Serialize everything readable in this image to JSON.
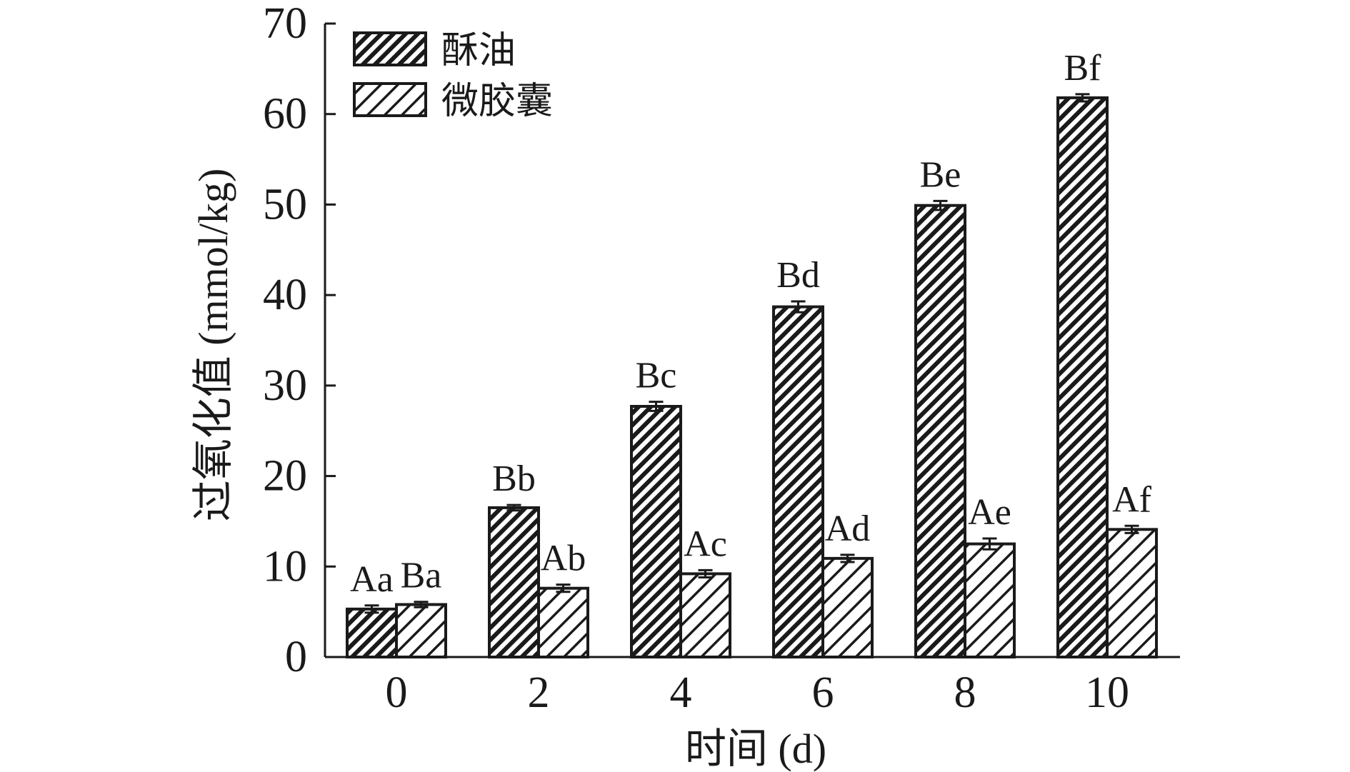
{
  "chart_data": {
    "type": "bar",
    "categories": [
      "0",
      "2",
      "4",
      "6",
      "8",
      "10"
    ],
    "series": [
      {
        "name": "酥油",
        "values": [
          5.3,
          16.5,
          27.7,
          38.7,
          49.9,
          61.8
        ],
        "errors": [
          0.4,
          0.3,
          0.5,
          0.6,
          0.5,
          0.4
        ],
        "labels": [
          "Aa",
          "Bb",
          "Bc",
          "Bd",
          "Be",
          "Bf"
        ],
        "pattern": "dense-hatch"
      },
      {
        "name": "微胶囊",
        "values": [
          5.8,
          7.6,
          9.2,
          10.9,
          12.5,
          14.1
        ],
        "errors": [
          0.3,
          0.4,
          0.4,
          0.4,
          0.6,
          0.4
        ],
        "labels": [
          "Ba",
          "Ab",
          "Ac",
          "Ad",
          "Ae",
          "Af"
        ],
        "pattern": "sparse-hatch"
      }
    ],
    "xlabel": "时间 (d)",
    "ylabel": "过氧化值 (mmol/kg)",
    "ylim": [
      0,
      70
    ],
    "yticks": [
      "0",
      "10",
      "20",
      "30",
      "40",
      "50",
      "60",
      "70"
    ],
    "legend_position": "top-left",
    "grid": false
  }
}
